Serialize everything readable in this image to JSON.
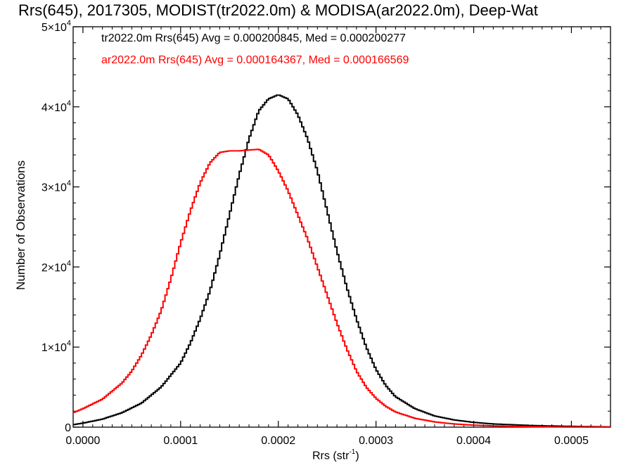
{
  "title": "Rrs(645), 2017305, MODIST(tr2022.0m) & MODISA(ar2022.0m), Deep-Wat",
  "stats": [
    {
      "text": "tr2022.0m Rrs(645) Avg = 0.000200845, Med = 0.000200277",
      "color": "#000000"
    },
    {
      "text": "ar2022.0m Rrs(645) Avg = 0.000164367, Med = 0.000166569",
      "color": "#ff0000"
    }
  ],
  "xlabel": {
    "base": "Rrs (str",
    "sup": "-1",
    "close": ")"
  },
  "ylabel": "Number of Observations",
  "chart_data": {
    "type": "line",
    "step": true,
    "xlim": [
      -1e-05,
      0.00054
    ],
    "ylim": [
      0,
      50000
    ],
    "grid": false,
    "x_ticks": [
      {
        "value": 0.0,
        "label": "0.0000"
      },
      {
        "value": 0.0001,
        "label": "0.0001"
      },
      {
        "value": 0.0002,
        "label": "0.0002"
      },
      {
        "value": 0.0003,
        "label": "0.0003"
      },
      {
        "value": 0.0004,
        "label": "0.0004"
      },
      {
        "value": 0.0005,
        "label": "0.0005"
      }
    ],
    "y_ticks": [
      {
        "value": 0,
        "base": "0",
        "exp": ""
      },
      {
        "value": 10000,
        "base": "1×10",
        "exp": "4"
      },
      {
        "value": 20000,
        "base": "2×10",
        "exp": "4"
      },
      {
        "value": 30000,
        "base": "3×10",
        "exp": "4"
      },
      {
        "value": 40000,
        "base": "4×10",
        "exp": "4"
      },
      {
        "value": 50000,
        "base": "5×10",
        "exp": "4"
      }
    ],
    "series": [
      {
        "color": "#000000",
        "x": [
          -1e-05,
          0.0,
          2e-05,
          4e-05,
          6e-05,
          8e-05,
          0.0001,
          0.00011,
          0.00012,
          0.00013,
          0.00014,
          0.00015,
          0.00016,
          0.00017,
          0.00018,
          0.00019,
          0.0002,
          0.00021,
          0.00022,
          0.00023,
          0.00024,
          0.00025,
          0.00026,
          0.00027,
          0.00028,
          0.00029,
          0.0003,
          0.00031,
          0.00032,
          0.00034,
          0.00036,
          0.00038,
          0.0004,
          0.00042,
          0.00044,
          0.00046,
          0.00048,
          0.0005,
          0.00052,
          0.00054
        ],
        "y": [
          300,
          500,
          1000,
          1800,
          3000,
          5000,
          8000,
          10500,
          13500,
          17000,
          21500,
          26500,
          31500,
          36000,
          39500,
          41000,
          41500,
          41000,
          39000,
          36000,
          32000,
          27000,
          22000,
          17500,
          13500,
          10000,
          7200,
          5200,
          3800,
          2300,
          1400,
          900,
          600,
          400,
          300,
          200,
          150,
          100,
          60,
          30
        ]
      },
      {
        "color": "#ff0000",
        "x": [
          -1e-05,
          0.0,
          2e-05,
          4e-05,
          5e-05,
          6e-05,
          7e-05,
          8e-05,
          9e-05,
          0.0001,
          0.00011,
          0.00012,
          0.00013,
          0.00014,
          0.00015,
          0.00016,
          0.00017,
          0.00018,
          0.00019,
          0.0002,
          0.00021,
          0.00022,
          0.00023,
          0.00024,
          0.00025,
          0.00026,
          0.00027,
          0.00028,
          0.00029,
          0.0003,
          0.00031,
          0.00032,
          0.00034,
          0.00036,
          0.00038,
          0.0004,
          0.00042,
          0.00044,
          0.00046,
          0.00048,
          0.0005,
          0.00052,
          0.00054
        ],
        "y": [
          1800,
          2300,
          3500,
          5500,
          7000,
          9000,
          11500,
          14500,
          18500,
          23000,
          27000,
          30500,
          33000,
          34300,
          34500,
          34500,
          34600,
          34700,
          34000,
          32000,
          29500,
          26500,
          23500,
          20000,
          16500,
          13000,
          9800,
          7000,
          5000,
          3600,
          2600,
          1900,
          1100,
          650,
          400,
          250,
          160,
          100,
          70,
          40,
          20,
          10,
          5
        ]
      }
    ]
  }
}
